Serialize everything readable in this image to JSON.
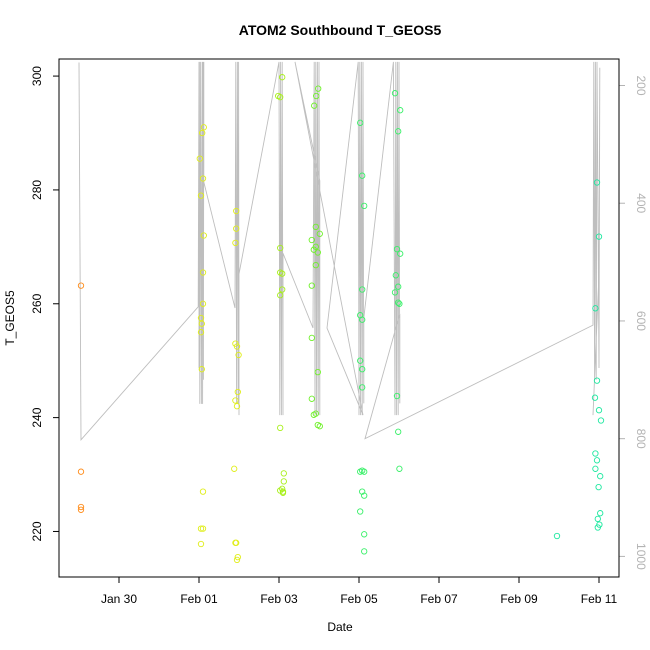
{
  "chart_data": {
    "type": "scatter",
    "title": "ATOM2 Southbound T_GEOS5",
    "xlabel": "Date",
    "ylabel": "T_GEOS5",
    "y2label": "",
    "x_tick_labels": [
      "Jan 30",
      "Feb 01",
      "Feb 03",
      "Feb 05",
      "Feb 07",
      "Feb 09",
      "Feb 11"
    ],
    "x_tick_values": [
      -2,
      0,
      2,
      4,
      6,
      8,
      10
    ],
    "xlim": [
      -3.5,
      10.5
    ],
    "ylim": [
      212,
      303
    ],
    "y_ticks": [
      220,
      240,
      260,
      280,
      300
    ],
    "y2lim": [
      1035,
      155
    ],
    "y2_ticks": [
      200,
      400,
      600,
      800,
      1000
    ],
    "colors": {
      "axis": "#000000",
      "pressure_line": "#bebebe",
      "secondary_axis": "#b3b3b3"
    },
    "series": [
      {
        "color": "#ff8c1a",
        "points": [
          [
            -2.95,
            263.2
          ],
          [
            -2.95,
            230.5
          ],
          [
            -2.95,
            224.3
          ],
          [
            -2.95,
            223.8
          ]
        ]
      },
      {
        "color": "#e0ee1a",
        "points": [
          [
            0.02,
            285.5
          ],
          [
            0.05,
            279
          ],
          [
            0.08,
            290
          ],
          [
            0.12,
            291
          ],
          [
            0.1,
            282
          ],
          [
            0.12,
            272
          ],
          [
            0.1,
            265.5
          ],
          [
            0.1,
            260
          ],
          [
            0.05,
            257.5
          ],
          [
            0.07,
            256.5
          ],
          [
            0.05,
            255
          ],
          [
            0.07,
            248.5
          ],
          [
            0.1,
            227
          ],
          [
            0.05,
            220.5
          ],
          [
            0.1,
            220.5
          ],
          [
            0.05,
            217.8
          ],
          [
            0.88,
            231
          ],
          [
            0.93,
            276.3
          ],
          [
            0.93,
            273.2
          ],
          [
            0.91,
            270.7
          ],
          [
            0.91,
            253
          ],
          [
            0.95,
            252.5
          ],
          [
            0.99,
            251
          ],
          [
            0.97,
            244.5
          ],
          [
            0.91,
            243
          ],
          [
            0.95,
            242
          ],
          [
            0.91,
            218
          ],
          [
            0.93,
            218
          ],
          [
            0.97,
            215.5
          ],
          [
            0.95,
            215
          ]
        ]
      },
      {
        "color": "#a8f01a",
        "points": [
          [
            1.98,
            296.5
          ],
          [
            2.03,
            296.3
          ],
          [
            2.08,
            299.8
          ],
          [
            2.03,
            269.8
          ],
          [
            2.03,
            265.5
          ],
          [
            2.08,
            265.3
          ],
          [
            2.08,
            262.5
          ],
          [
            2.03,
            261.5
          ],
          [
            2.03,
            238.2
          ],
          [
            2.12,
            230.2
          ],
          [
            2.12,
            228.8
          ],
          [
            2.08,
            227.5
          ],
          [
            2.1,
            227
          ],
          [
            2.03,
            227.2
          ],
          [
            2.1,
            226.8
          ]
        ]
      },
      {
        "color": "#6ff02a",
        "points": [
          [
            2.88,
            294.8
          ],
          [
            2.93,
            296.5
          ],
          [
            2.98,
            297.8
          ],
          [
            2.82,
            271.2
          ],
          [
            2.87,
            269.5
          ],
          [
            2.92,
            273.5
          ],
          [
            3.02,
            272.3
          ],
          [
            2.92,
            270
          ],
          [
            2.97,
            269
          ],
          [
            2.92,
            266.8
          ],
          [
            2.82,
            263.2
          ],
          [
            2.82,
            254
          ],
          [
            2.97,
            248
          ],
          [
            2.82,
            243.3
          ],
          [
            2.87,
            240.5
          ],
          [
            2.92,
            240.7
          ],
          [
            2.97,
            238.7
          ],
          [
            3.02,
            238.5
          ]
        ]
      },
      {
        "color": "#38f068",
        "points": [
          [
            4.03,
            291.8
          ],
          [
            4.08,
            282.5
          ],
          [
            4.13,
            277.2
          ],
          [
            4.08,
            262.5
          ],
          [
            4.03,
            258
          ],
          [
            4.08,
            257.2
          ],
          [
            4.03,
            250
          ],
          [
            4.08,
            248.5
          ],
          [
            4.08,
            245.3
          ],
          [
            4.03,
            230.5
          ],
          [
            4.13,
            230.5
          ],
          [
            4.08,
            230.7
          ],
          [
            4.08,
            227
          ],
          [
            4.13,
            226.3
          ],
          [
            4.03,
            223.5
          ],
          [
            4.13,
            219.5
          ],
          [
            4.13,
            216.5
          ],
          [
            4.9,
            297
          ],
          [
            5.03,
            294
          ],
          [
            4.98,
            290.3
          ],
          [
            4.95,
            269.6
          ],
          [
            5.03,
            268.8
          ],
          [
            4.92,
            265
          ],
          [
            4.98,
            263
          ],
          [
            4.9,
            262
          ],
          [
            4.98,
            260.2
          ],
          [
            5.01,
            260
          ],
          [
            4.95,
            243.8
          ],
          [
            4.98,
            237.5
          ],
          [
            5.01,
            231
          ]
        ]
      },
      {
        "color": "#1ee8a0",
        "points": [
          [
            8.95,
            219.2
          ],
          [
            10.0,
            271.8
          ],
          [
            9.95,
            281.3
          ],
          [
            9.91,
            259.2
          ],
          [
            9.95,
            246.5
          ],
          [
            9.9,
            243.5
          ],
          [
            10.0,
            241.3
          ],
          [
            10.05,
            239.5
          ],
          [
            9.91,
            233.7
          ],
          [
            9.95,
            232.5
          ],
          [
            9.91,
            231
          ],
          [
            10.03,
            229.7
          ],
          [
            9.99,
            227.8
          ],
          [
            10.03,
            223.2
          ],
          [
            9.97,
            222.2
          ],
          [
            10.01,
            221.2
          ],
          [
            9.97,
            220.7
          ]
        ]
      }
    ],
    "pressure_path": [
      [
        -3.0,
        161
      ],
      [
        -2.95,
        802
      ],
      [
        -0.02,
        576
      ],
      [
        0.0,
        160
      ],
      [
        0.0,
        680
      ],
      [
        0.01,
        160
      ],
      [
        0.02,
        741
      ],
      [
        0.04,
        160
      ],
      [
        0.06,
        741
      ],
      [
        0.08,
        160
      ],
      [
        0.09,
        741
      ],
      [
        0.1,
        160
      ],
      [
        0.11,
        700
      ],
      [
        0.12,
        160
      ],
      [
        0.12,
        364
      ],
      [
        0.9,
        578
      ],
      [
        0.92,
        160
      ],
      [
        0.94,
        741
      ],
      [
        0.96,
        160
      ],
      [
        0.98,
        741
      ],
      [
        0.99,
        160
      ],
      [
        1.0,
        760
      ],
      [
        1.0,
        520
      ],
      [
        2.0,
        160
      ],
      [
        2.02,
        760
      ],
      [
        2.04,
        160
      ],
      [
        2.06,
        760
      ],
      [
        2.08,
        160
      ],
      [
        2.1,
        760
      ],
      [
        2.1,
        485
      ],
      [
        2.85,
        612
      ],
      [
        2.88,
        160
      ],
      [
        2.9,
        760
      ],
      [
        2.92,
        160
      ],
      [
        2.94,
        760
      ],
      [
        2.96,
        160
      ],
      [
        2.98,
        760
      ],
      [
        3.0,
        160
      ],
      [
        3.02,
        760
      ],
      [
        3.02,
        362
      ],
      [
        2.4,
        160
      ],
      [
        4.1,
        760
      ],
      [
        3.2,
        612
      ],
      [
        3.98,
        160
      ],
      [
        4.0,
        760
      ],
      [
        4.02,
        160
      ],
      [
        4.04,
        760
      ],
      [
        4.06,
        160
      ],
      [
        4.08,
        760
      ],
      [
        4.1,
        160
      ],
      [
        4.12,
        740
      ],
      [
        4.12,
        595
      ],
      [
        4.86,
        160
      ],
      [
        4.9,
        760
      ],
      [
        4.92,
        160
      ],
      [
        4.94,
        760
      ],
      [
        4.96,
        160
      ],
      [
        4.98,
        760
      ],
      [
        5.0,
        160
      ],
      [
        5.02,
        740
      ],
      [
        5.02,
        588
      ],
      [
        4.15,
        800
      ],
      [
        9.85,
        607
      ],
      [
        9.87,
        160
      ],
      [
        9.89,
        700
      ],
      [
        9.91,
        160
      ],
      [
        9.93,
        700
      ],
      [
        9.95,
        160
      ],
      [
        10.0,
        680
      ],
      [
        10.02,
        170
      ],
      [
        10.0,
        520
      ],
      [
        9.85,
        760
      ]
    ]
  }
}
